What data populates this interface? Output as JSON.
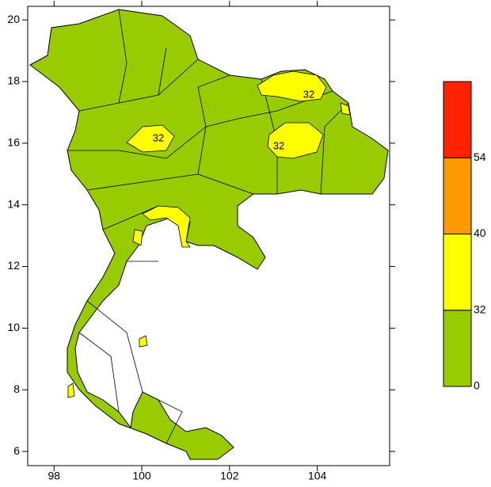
{
  "map": {
    "xlim": [
      97.4,
      105.65
    ],
    "ylim": [
      5.54,
      20.44
    ],
    "xticks": [
      98,
      100,
      102,
      104
    ],
    "yticks": [
      6,
      8,
      10,
      12,
      14,
      16,
      18,
      20
    ],
    "contour_labels": [
      "32",
      "32",
      "32"
    ]
  },
  "colorbar": {
    "levels": [
      0,
      32,
      40,
      54
    ],
    "colors": [
      "#99cc00",
      "#ffff00",
      "#ff9900",
      "#ff2200"
    ]
  }
}
